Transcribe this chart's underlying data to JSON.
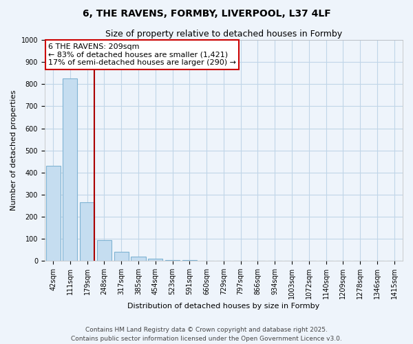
{
  "title": "6, THE RAVENS, FORMBY, LIVERPOOL, L37 4LF",
  "subtitle": "Size of property relative to detached houses in Formby",
  "xlabel": "Distribution of detached houses by size in Formby",
  "ylabel": "Number of detached properties",
  "categories": [
    "42sqm",
    "111sqm",
    "179sqm",
    "248sqm",
    "317sqm",
    "385sqm",
    "454sqm",
    "523sqm",
    "591sqm",
    "660sqm",
    "729sqm",
    "797sqm",
    "866sqm",
    "934sqm",
    "1003sqm",
    "1072sqm",
    "1140sqm",
    "1209sqm",
    "1278sqm",
    "1346sqm",
    "1415sqm"
  ],
  "values": [
    430,
    825,
    265,
    95,
    42,
    18,
    10,
    5,
    3,
    2,
    1,
    1,
    0,
    0,
    0,
    0,
    0,
    0,
    0,
    0,
    2
  ],
  "bar_color": "#c5ddf0",
  "bar_edge_color": "#7fb3d3",
  "grid_color": "#c0d5e8",
  "background_color": "#eef4fb",
  "annotation_text": "6 THE RAVENS: 209sqm\n← 83% of detached houses are smaller (1,421)\n17% of semi-detached houses are larger (290) →",
  "vline_color": "#aa0000",
  "vline_x": 2.43,
  "annotation_box_facecolor": "#ffffff",
  "annotation_box_edgecolor": "#cc0000",
  "ylim": [
    0,
    1000
  ],
  "yticks": [
    0,
    100,
    200,
    300,
    400,
    500,
    600,
    700,
    800,
    900,
    1000
  ],
  "footer_text": "Contains HM Land Registry data © Crown copyright and database right 2025.\nContains public sector information licensed under the Open Government Licence v3.0.",
  "title_fontsize": 10,
  "subtitle_fontsize": 9,
  "axis_label_fontsize": 8,
  "tick_fontsize": 7,
  "annotation_fontsize": 8,
  "footer_fontsize": 6.5
}
